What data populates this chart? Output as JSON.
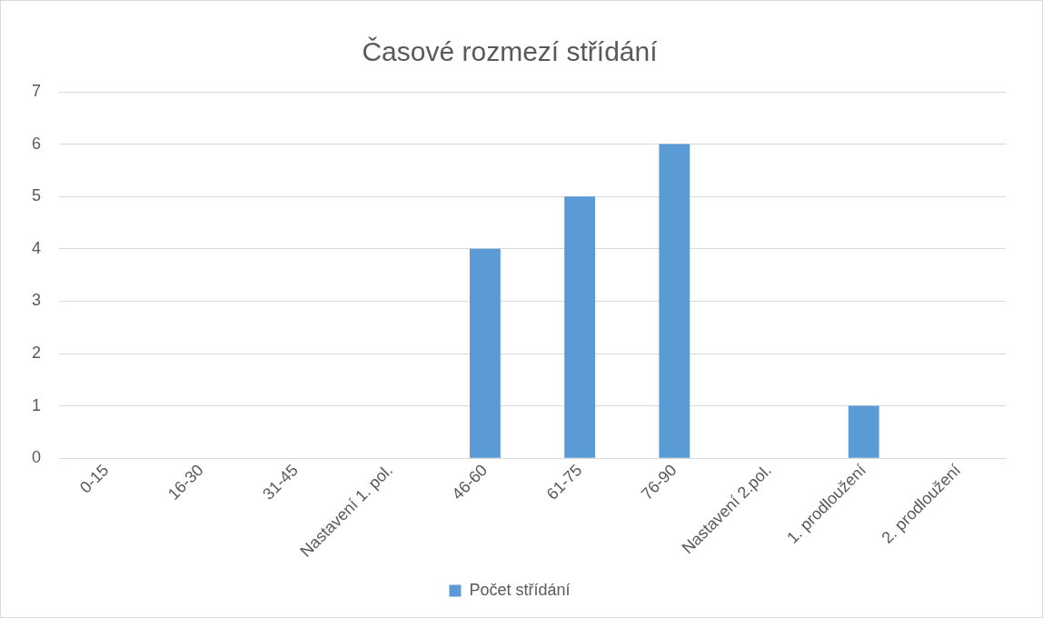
{
  "chart_data": {
    "type": "bar",
    "title": "Časové rozmezí střídání",
    "categories": [
      "0-15",
      "16-30",
      "31-45",
      "Nastavení 1. pol.",
      "46-60",
      "61-75",
      "76-90",
      "Nastavení 2.pol.",
      "1. prodloužení",
      "2. prodloužení"
    ],
    "series": [
      {
        "name": "Počet střídání",
        "color": "#5b9bd5",
        "values": [
          0,
          0,
          0,
          0,
          4,
          5,
          6,
          0,
          1,
          0
        ]
      }
    ],
    "ylim": [
      0,
      7
    ],
    "yticks": [
      0,
      1,
      2,
      3,
      4,
      5,
      6,
      7
    ],
    "grid": "y",
    "legend": "bottom"
  }
}
